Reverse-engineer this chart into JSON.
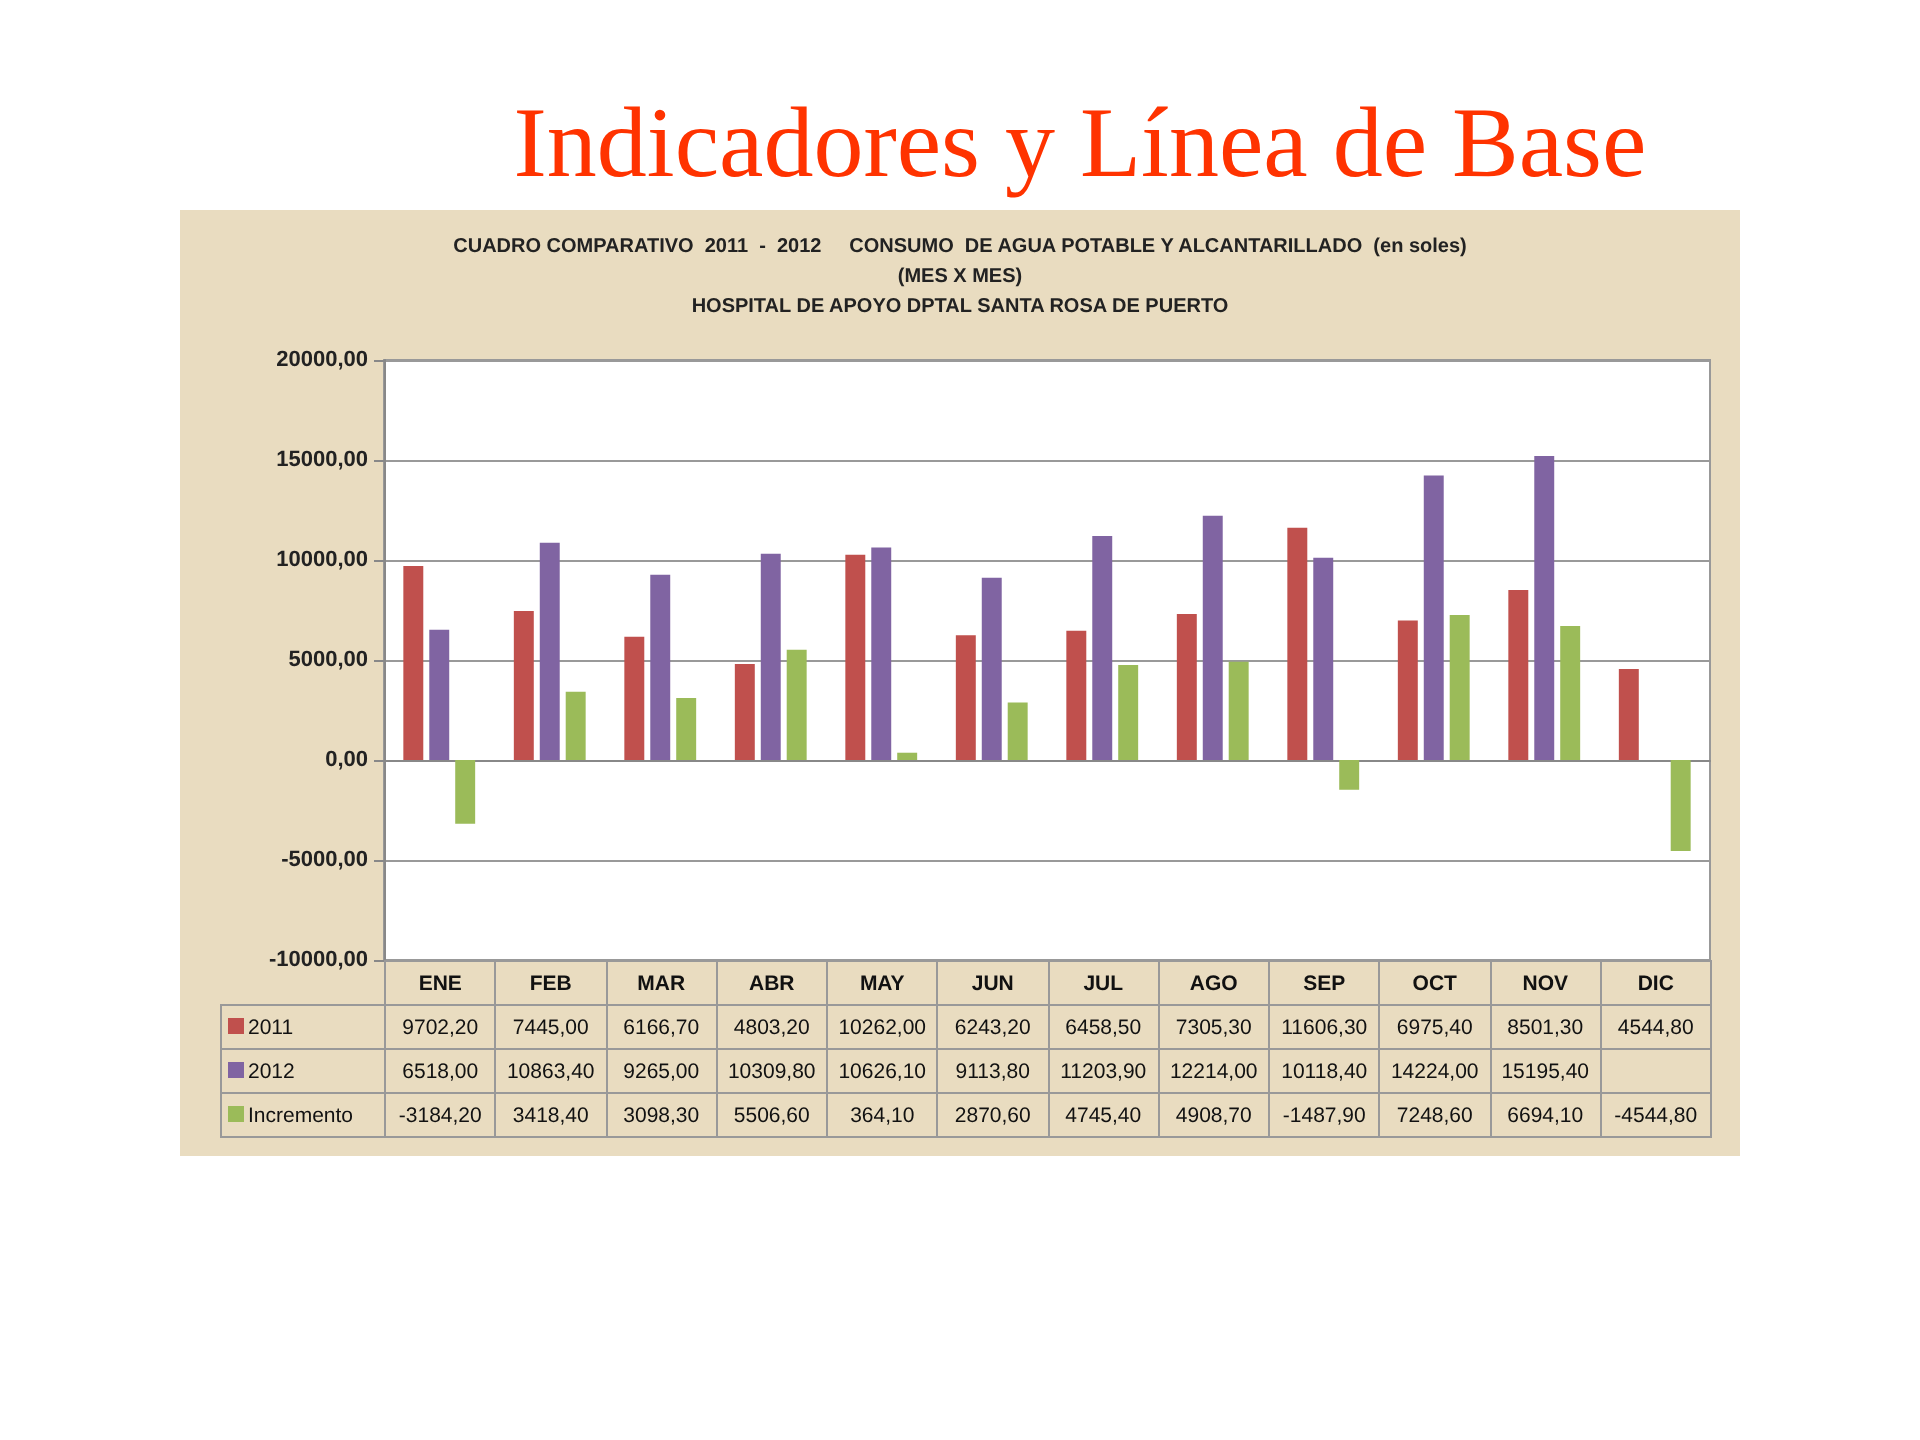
{
  "chart_data": {
    "type": "bar",
    "title": "Indicadores y Línea de Base",
    "subtitle": "CUADRO COMPARATIVO  2011  -  2012     CONSUMO  DE AGUA POTABLE Y ALCANTARILLADO  (en soles)\n(MES X MES)\nHOSPITAL DE APOYO DPTAL SANTA ROSA DE PUERTO",
    "categories": [
      "ENE",
      "FEB",
      "MAR",
      "ABR",
      "MAY",
      "JUN",
      "JUL",
      "AGO",
      "SEP",
      "OCT",
      "NOV",
      "DIC"
    ],
    "series": [
      {
        "name": "2011",
        "color": "#c0504d",
        "values": [
          9702.2,
          7445.0,
          6166.7,
          4803.2,
          10262.0,
          6243.2,
          6458.5,
          7305.3,
          11606.3,
          6975.4,
          8501.3,
          4544.8
        ],
        "value_labels": [
          "9702,20",
          "7445,00",
          "6166,70",
          "4803,20",
          "10262,00",
          "6243,20",
          "6458,50",
          "7305,30",
          "11606,30",
          "6975,40",
          "8501,30",
          "4544,80"
        ]
      },
      {
        "name": "2012",
        "color": "#8064a2",
        "values": [
          6518.0,
          10863.4,
          9265.0,
          10309.8,
          10626.1,
          9113.8,
          11203.9,
          12214.0,
          10118.4,
          14224.0,
          15195.4,
          null
        ],
        "value_labels": [
          "6518,00",
          "10863,40",
          "9265,00",
          "10309,80",
          "10626,10",
          "9113,80",
          "11203,90",
          "12214,00",
          "10118,40",
          "14224,00",
          "15195,40",
          null
        ]
      },
      {
        "name": "Incremento",
        "color": "#9bbb59",
        "values": [
          -3184.2,
          3418.4,
          3098.3,
          5506.6,
          364.1,
          2870.6,
          4745.4,
          4908.7,
          -1487.9,
          7248.6,
          6694.1,
          -4544.8
        ],
        "value_labels": [
          "-3184,20",
          "3418,40",
          "3098,30",
          "5506,60",
          "364,10",
          "2870,60",
          "4745,40",
          "4908,70",
          "-1487,90",
          "7248,60",
          "6694,10",
          "-4544,80"
        ]
      }
    ],
    "ylim": [
      -10000,
      20000
    ],
    "yticks": [
      {
        "value": -10000,
        "label": "-10000,00"
      },
      {
        "value": -5000,
        "label": "-5000,00"
      },
      {
        "value": 0,
        "label": "0,00"
      },
      {
        "value": 5000,
        "label": "5000,00"
      },
      {
        "value": 10000,
        "label": "10000,00"
      },
      {
        "value": 15000,
        "label": "15000,00"
      },
      {
        "value": 20000,
        "label": "20000,00"
      }
    ],
    "grid": "y",
    "legend": "bottom left"
  }
}
